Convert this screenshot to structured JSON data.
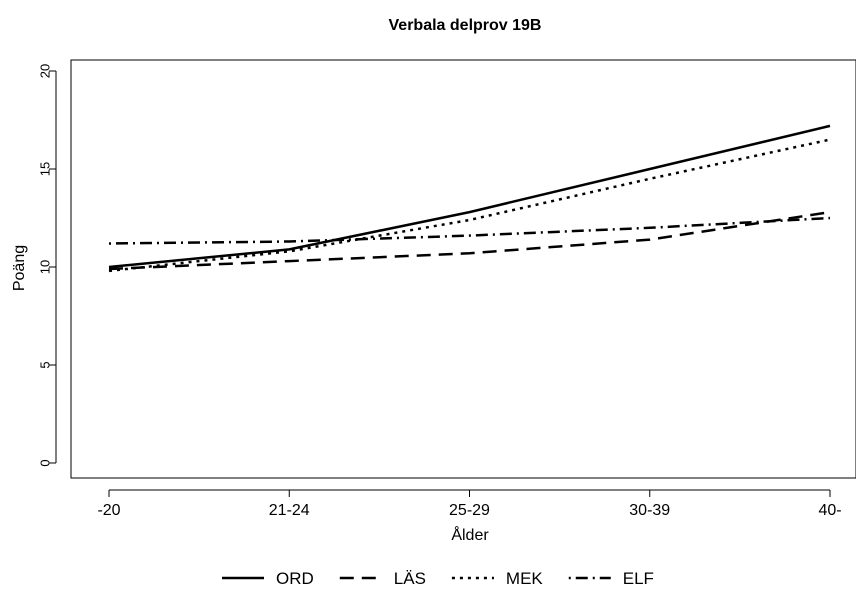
{
  "chart_data": {
    "type": "line",
    "title": "Verbala delprov 19B",
    "xlabel": "Ålder",
    "ylabel": "Poäng",
    "categories": [
      "-20",
      "21-24",
      "25-29",
      "30-39",
      "40-"
    ],
    "ylim": [
      0,
      20
    ],
    "yticks": [
      0,
      5,
      10,
      15,
      20
    ],
    "grid": false,
    "legend_position": "bottom",
    "series": [
      {
        "name": "ORD",
        "dash": "solid",
        "values": [
          10.0,
          10.9,
          12.8,
          15.0,
          17.2
        ]
      },
      {
        "name": "LÄS",
        "dash": "dashed",
        "values": [
          9.9,
          10.3,
          10.7,
          11.4,
          12.8
        ]
      },
      {
        "name": "MEK",
        "dash": "dotted",
        "values": [
          9.8,
          10.8,
          12.4,
          14.5,
          16.5
        ]
      },
      {
        "name": "ELF",
        "dash": "dotdash",
        "values": [
          11.2,
          11.3,
          11.6,
          12.0,
          12.5
        ]
      }
    ],
    "colors": {
      "line": "#000000",
      "frame": "#000000",
      "background": "#ffffff"
    }
  }
}
